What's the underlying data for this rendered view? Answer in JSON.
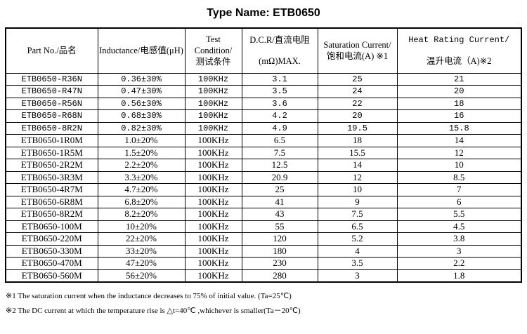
{
  "title": "Type Name: ETB0650",
  "table": {
    "columns": [
      {
        "lines": [
          "Part No./品名"
        ]
      },
      {
        "lines": [
          "Inductance/电感值(μH)"
        ]
      },
      {
        "lines": [
          "Test",
          "Condition/",
          "测试条件"
        ]
      },
      {
        "lines": [
          "D.C.R/直流电阻",
          "(mΩ)MAX."
        ]
      },
      {
        "lines": [
          "Saturation Current/",
          "饱和电流(A) ※1"
        ]
      },
      {
        "lines": [
          "Heat Rating Current/",
          "温升电流（A)※2"
        ]
      }
    ],
    "rows": [
      [
        "ETB0650-R36N",
        "0.36±30%",
        "100KHz",
        "3.1",
        "25",
        "21"
      ],
      [
        "ETB0650-R47N",
        "0.47±30%",
        "100KHz",
        "3.5",
        "24",
        "20"
      ],
      [
        "ETB0650-R56N",
        "0.56±30%",
        "100KHz",
        "3.6",
        "22",
        "18"
      ],
      [
        "ETB0650-R68N",
        "0.68±30%",
        "100KHz",
        "4.2",
        "20",
        "16"
      ],
      [
        "ETB0650-8R2N",
        "0.82±30%",
        "100KHz",
        "4.9",
        "19.5",
        "15.8"
      ],
      [
        "ETB0650-1R0M",
        "1.0±20%",
        "100KHz",
        "6.5",
        "18",
        "14"
      ],
      [
        "ETB0650-1R5M",
        "1.5±20%",
        "100KHz",
        "7.5",
        "15.5",
        "12"
      ],
      [
        "ETB0650-2R2M",
        "2.2±20%",
        "100KHz",
        "12.5",
        "14",
        "10"
      ],
      [
        "ETB0650-3R3M",
        "3.3±20%",
        "100KHz",
        "20.9",
        "12",
        "8.5"
      ],
      [
        "ETB0650-4R7M",
        "4.7±20%",
        "100KHz",
        "25",
        "10",
        "7"
      ],
      [
        "ETB0650-6R8M",
        "6.8±20%",
        "100KHz",
        "41",
        "9",
        "6"
      ],
      [
        "ETB0650-8R2M",
        "8.2±20%",
        "100KHz",
        "43",
        "7.5",
        "5.5"
      ],
      [
        "ETB0650-100M",
        "10±20%",
        "100KHz",
        "55",
        "6.5",
        "4.5"
      ],
      [
        "ETB0650-220M",
        "22±20%",
        "100KHz",
        "120",
        "5.2",
        "3.8"
      ],
      [
        "ETB0650-330M",
        "33±20%",
        "100KHz",
        "180",
        "4",
        "3"
      ],
      [
        "ETB0650-470M",
        "47±20%",
        "100KHz",
        "230",
        "3.5",
        "2.2"
      ],
      [
        "ETB0650-560M",
        "56±20%",
        "100KHz",
        "280",
        "3",
        "1.8"
      ]
    ]
  },
  "footnotes": [
    "※1 The saturation current when the inductance decreases to 75% of initial value. (Ta=25℃)",
    "※2 The DC current at which the temperature rise is △t=40℃ ,whichever is smaller(Ta－20℃)"
  ]
}
